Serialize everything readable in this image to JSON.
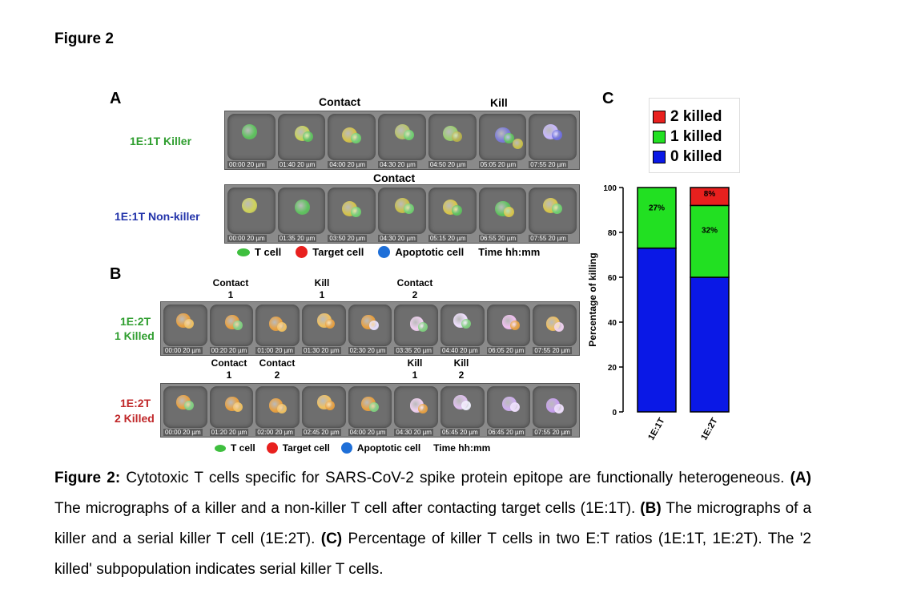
{
  "figure_title": "Figure 2",
  "panels": {
    "a": "A",
    "b": "B",
    "c": "C"
  },
  "panel_a": {
    "row1_label": "1E:1T Killer",
    "row2_label": "1E:1T Non-killer",
    "row1_events": [
      "Contact",
      "Kill"
    ],
    "row2_events": [
      "Contact"
    ],
    "row1_times": [
      "00:00",
      "01:40",
      "04:00",
      "04:30",
      "04:50",
      "05:05",
      "07:55"
    ],
    "row2_times": [
      "00:00",
      "01:35",
      "03:50",
      "04:30",
      "05:15",
      "06:55",
      "07:55"
    ]
  },
  "legend": {
    "t_cell": "T cell",
    "target_cell": "Target cell",
    "apoptotic_cell": "Apoptotic cell",
    "time": "Time hh:mm"
  },
  "panel_b": {
    "row1_label_line1": "1E:2T",
    "row1_label_line2": "1 Killed",
    "row2_label_line1": "1E:2T",
    "row2_label_line2": "2 Killed",
    "row1_events": [
      {
        "name": "Contact",
        "num": "1"
      },
      {
        "name": "Kill",
        "num": "1"
      },
      {
        "name": "Contact",
        "num": "2"
      }
    ],
    "row2_events": [
      {
        "name": "Contact",
        "num": "1"
      },
      {
        "name": "Contact",
        "num": "2"
      },
      {
        "name": "Kill",
        "num": "1"
      },
      {
        "name": "Kill",
        "num": "2"
      }
    ],
    "row1_times": [
      "00:00",
      "00:20",
      "01:00",
      "01:30",
      "02:30",
      "03:35",
      "04:40",
      "06:05",
      "07:55"
    ],
    "row2_times": [
      "00:00",
      "01:20",
      "02:00",
      "02:45",
      "04:00",
      "04:30",
      "05:45",
      "06:45",
      "07:55"
    ]
  },
  "scale_bar": "20 µm",
  "chart_data": {
    "type": "bar",
    "stacked": true,
    "categories": [
      "1E:1T",
      "1E:2T"
    ],
    "series": [
      {
        "name": "0 killed",
        "color": "#0a18e6",
        "values": [
          73,
          60
        ]
      },
      {
        "name": "1 killed",
        "color": "#22e022",
        "values": [
          27,
          32
        ]
      },
      {
        "name": "2 killed",
        "color": "#e8201e",
        "values": [
          0,
          8
        ]
      }
    ],
    "segment_labels": [
      {
        "category": "1E:1T",
        "series": "1 killed",
        "text": "27%"
      },
      {
        "category": "1E:2T",
        "series": "1 killed",
        "text": "32%"
      },
      {
        "category": "1E:2T",
        "series": "2 killed",
        "text": "8%"
      }
    ],
    "ylabel": "Percentage of killing",
    "ylim": [
      0,
      100
    ],
    "yticks": [
      "0",
      "20",
      "40",
      "60",
      "80",
      "100"
    ],
    "legend_position": "top",
    "grid": false
  },
  "caption": {
    "label": "Figure 2:",
    "text1": " Cytotoxic T cells specific for SARS-CoV-2 spike protein epitope are functionally heterogeneous. ",
    "a": "(A)",
    "text2": " The micrographs of a killer and a non-killer T cell after contacting target cells (1E:1T). ",
    "b": "(B)",
    "text3": " The micrographs of a killer and a serial killer T cell (1E:2T). ",
    "c": "(C)",
    "text4": " Percentage of killer T cells in two E:T ratios (1E:1T, 1E:2T). The '2 killed' subpopulation indicates serial killer T cells."
  }
}
